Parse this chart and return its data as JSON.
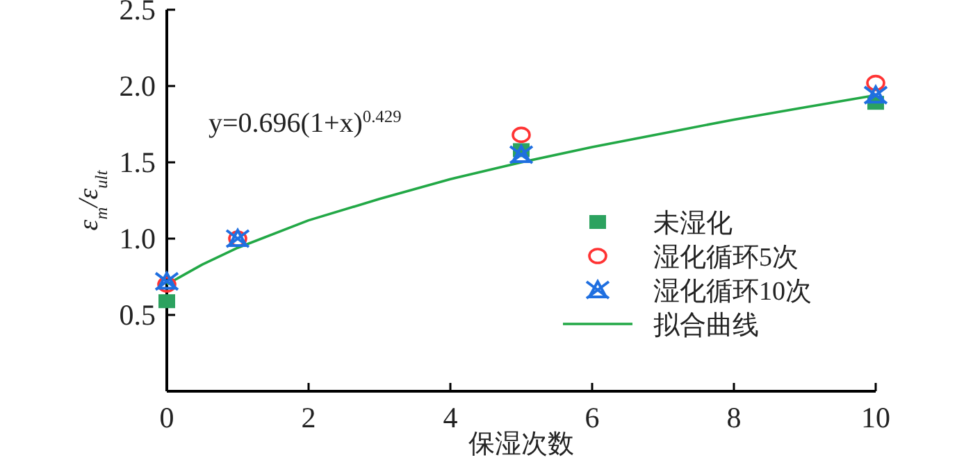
{
  "chart_data": {
    "type": "scatter",
    "xlabel": "保湿次数",
    "ylabel": "ε$_{m}$/ε$_{ult}$",
    "annotations": [
      "y=0.696(1+x)$^{0.429}$"
    ],
    "x": [
      0,
      1,
      5,
      10
    ],
    "xlim": [
      0,
      10
    ],
    "xticks": [
      0,
      2,
      4,
      6,
      8,
      10
    ],
    "ylim": [
      0,
      2.5
    ],
    "yticks": [
      0.5,
      {
        "value": 1,
        "label": "1.0"
      },
      1.5,
      {
        "value": 2,
        "label": "2.0"
      },
      2.5
    ],
    "grid": false,
    "legend": "right",
    "series": [
      {
        "name": "未湿化",
        "color": "#2ca25f",
        "marker": "square",
        "values": [
          0.59,
          null,
          1.58,
          1.89
        ]
      },
      {
        "name": "湿化循环5次",
        "color": "#ff3333",
        "marker": "circle",
        "values": [
          0.7,
          1.0,
          1.68,
          2.02
        ]
      },
      {
        "name": "湿化循环10次",
        "color": "#1f6fe0",
        "marker": "cross",
        "values": [
          0.72,
          1.0,
          1.55,
          1.94
        ]
      },
      {
        "name": "拟合曲线",
        "type": "line",
        "color": "#22a846",
        "x": [
          0,
          0.5,
          1,
          2,
          3,
          4,
          5,
          6,
          7,
          8,
          9,
          10
        ],
        "values": [
          0.7,
          0.83,
          0.94,
          1.12,
          1.26,
          1.39,
          1.5,
          1.6,
          1.69,
          1.78,
          1.86,
          1.94
        ]
      }
    ]
  }
}
